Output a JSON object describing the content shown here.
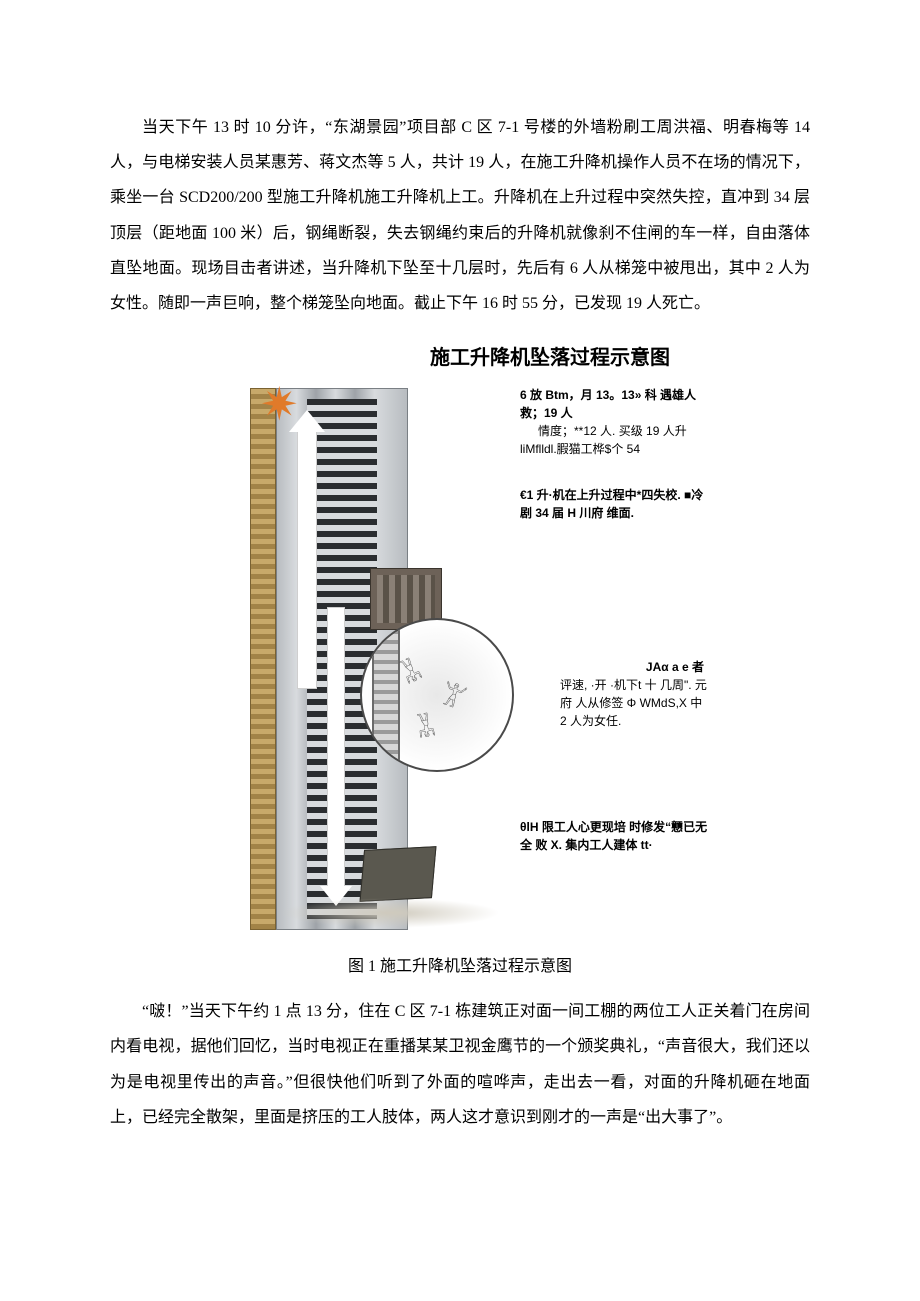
{
  "paragraphs": {
    "p1": "当天下午 13 时 10 分许，“东湖景园”项目部 C 区 7-1 号楼的外墙粉刷工周洪福、明春梅等 14 人，与电梯安装人员某惠芳、蒋文杰等 5 人，共计 19 人，在施工升降机操作人员不在场的情况下，乘坐一台 SCD200/200 型施工升降机施工升降机上工。升降机在上升过程中突然失控，直冲到 34 层顶层（距地面 100 米）后，钢绳断裂，失去钢绳约束后的升降机就像刹不住闸的车一样，自由落体直坠地面。现场目击者讲述，当升降机下坠至十几层时，先后有 6 人从梯笼中被甩出，其中 2 人为女性。随即一声巨响，整个梯笼坠向地面。截止下午 16 时 55 分，已发现 19 人死亡。",
    "p2": "“啵！”当天下午约 1 点 13 分，住在 C 区 7-1 栋建筑正对面一间工棚的两位工人正关着门在房间内看电视，据他们回忆，当时电视正在重播某某卫视金鹰节的一个颁奖典礼，“声音很大，我们还以为是电视里传出的声音。”但很快他们听到了外面的喧哗声，走出去一看，对面的升降机砸在地面上，已经完全散架，里面是挤压的工人肢体，两人这才意识到刚才的一声是“出大事了”。"
  },
  "diagram": {
    "title": "施工升降机坠落过程示意图",
    "caption": "图 1 施工升降机坠落过程示意图",
    "annotations": {
      "a1_l1": "6 放 Btm，月 13。13» 科 遇雄人救；19 人",
      "a1_l2": "情度；**12 人. 买级 19 人升 liMflldl.腵猫工桦$个 54",
      "a2": "€1 升·机在上升过程中*四失校. ■冷剧 34 届 H 川府 维面.",
      "a3_l1": "JAα a e 者",
      "a3_l2": "评速, ·开 ·机下t 十 几周\". 元府 人从修签 Φ WMdS,X 中 2 人为女任.",
      "a4": "θlH 限工人心更现培 时修发“戅已无全 败 X. 集内工人建体 tt·"
    }
  }
}
